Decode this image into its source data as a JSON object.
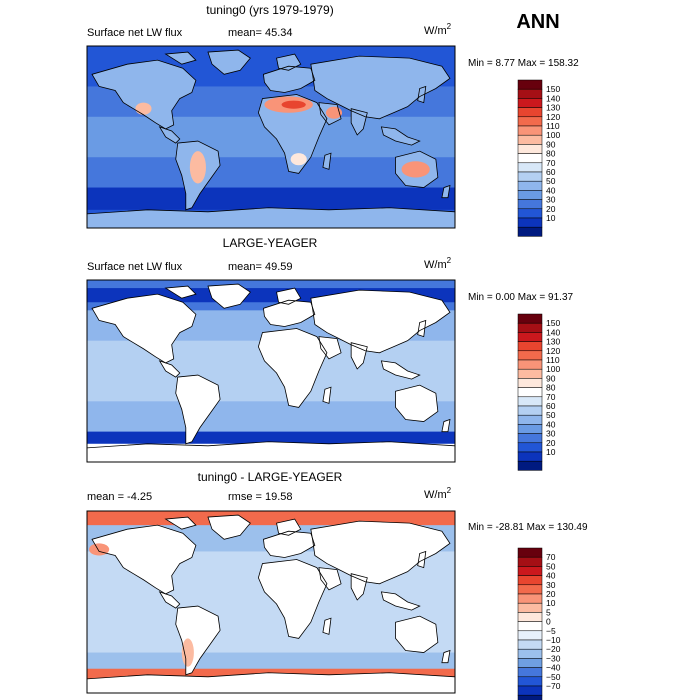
{
  "season_label": "ANN",
  "units": {
    "base": "W/m",
    "exp": "2"
  },
  "chart_data": [
    {
      "type": "heatmap",
      "title": "tuning0 (yrs 1979-1979)",
      "subtitle": "Surface net LW flux",
      "mean_label": "mean=",
      "mean": "45.34",
      "min_label": "Min =",
      "min": "8.77",
      "max_label": "Max =",
      "max": "158.32",
      "colorbar_levels": [
        "150",
        "140",
        "130",
        "120",
        "110",
        "100",
        "90",
        "80",
        "70",
        "60",
        "50",
        "40",
        "30",
        "20",
        "10"
      ],
      "colorbar_colors": [
        "#67000d",
        "#a50f15",
        "#cb181d",
        "#e8452f",
        "#f26a4c",
        "#f99478",
        "#fcbba1",
        "#fee8dc",
        "#ffffff",
        "#d8e8f8",
        "#b4d0f2",
        "#8fb6ec",
        "#6a9be4",
        "#4577dc",
        "#2256d6",
        "#0c34bc",
        "#001a80"
      ],
      "field_type": "model"
    },
    {
      "type": "heatmap",
      "title": "LARGE-YEAGER",
      "subtitle": "Surface net LW flux",
      "mean_label": "mean=",
      "mean": "49.59",
      "min_label": "Min =",
      "min": "0.00",
      "max_label": "Max =",
      "max": "91.37",
      "colorbar_levels": [
        "150",
        "140",
        "130",
        "120",
        "110",
        "100",
        "90",
        "80",
        "70",
        "60",
        "50",
        "40",
        "30",
        "20",
        "10"
      ],
      "colorbar_colors": [
        "#67000d",
        "#a50f15",
        "#cb181d",
        "#e8452f",
        "#f26a4c",
        "#f99478",
        "#fcbba1",
        "#fee8dc",
        "#ffffff",
        "#d8e8f8",
        "#b4d0f2",
        "#8fb6ec",
        "#6a9be4",
        "#4577dc",
        "#2256d6",
        "#0c34bc",
        "#001a80"
      ],
      "field_type": "obs"
    },
    {
      "type": "heatmap",
      "title": "tuning0 - LARGE-YEAGER",
      "subtitle": "",
      "mean_label": "mean =",
      "mean": "-4.25",
      "rmse_label": "rmse =",
      "rmse": "19.58",
      "min_label": "Min =",
      "min": "-28.81",
      "max_label": "Max =",
      "max": "130.49",
      "colorbar_levels": [
        "70",
        "50",
        "40",
        "30",
        "20",
        "10",
        "5",
        "0",
        "−5",
        "−10",
        "−20",
        "−30",
        "−40",
        "−50",
        "−70"
      ],
      "colorbar_colors": [
        "#67000d",
        "#a50f15",
        "#cb181d",
        "#e8452f",
        "#f26a4c",
        "#f99478",
        "#fcbba1",
        "#fee8dc",
        "#ffffff",
        "#e8f1fb",
        "#c4daf4",
        "#9cc0ec",
        "#6f9fe2",
        "#4577dc",
        "#2256d6",
        "#0c34bc",
        "#001a80"
      ],
      "field_type": "diff"
    }
  ]
}
